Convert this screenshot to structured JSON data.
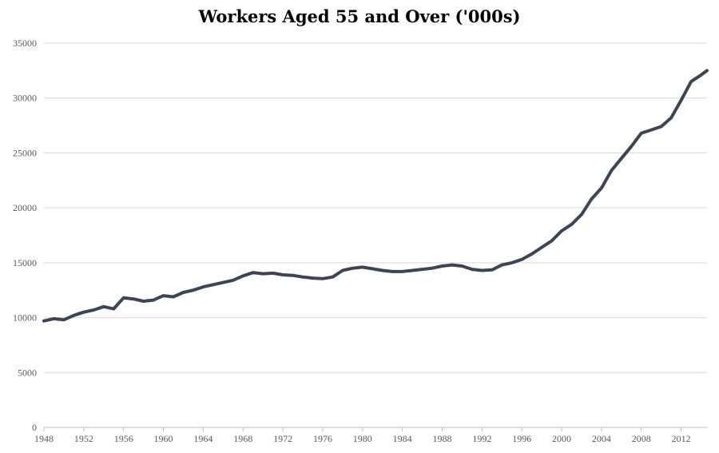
{
  "chart_data": {
    "type": "line",
    "title": "Workers Aged 55 and Over ('000s)",
    "xlabel": "",
    "ylabel": "",
    "xlim": [
      1948,
      2014.6
    ],
    "ylim": [
      0,
      35000
    ],
    "x_ticks": [
      "1948",
      "1952",
      "1956",
      "1960",
      "1964",
      "1968",
      "1972",
      "1976",
      "1980",
      "1984",
      "1988",
      "1992",
      "1996",
      "2000",
      "2004",
      "2008",
      "2012"
    ],
    "y_ticks": [
      "0",
      "5000",
      "10000",
      "15000",
      "20000",
      "25000",
      "30000",
      "35000"
    ],
    "grid": "horizontal",
    "legend": "none",
    "line_color": "#3d4555",
    "series": [
      {
        "x": [
          1948,
          1949,
          1950,
          1951,
          1952,
          1953,
          1954,
          1955,
          1956,
          1957,
          1958,
          1959,
          1960,
          1961,
          1962,
          1963,
          1964,
          1965,
          1966,
          1967,
          1968,
          1969,
          1970,
          1971,
          1972,
          1973,
          1974,
          1975,
          1976,
          1977,
          1978,
          1979,
          1980,
          1981,
          1982,
          1983,
          1984,
          1985,
          1986,
          1987,
          1988,
          1989,
          1990,
          1991,
          1992,
          1993,
          1994,
          1995,
          1996,
          1997,
          1998,
          1999,
          2000,
          2001,
          2002,
          2003,
          2004,
          2005,
          2006,
          2007,
          2008,
          2009,
          2010,
          2011,
          2012,
          2013,
          2014,
          2014.6
        ],
        "y": [
          9700,
          9900,
          9800,
          10200,
          10500,
          10700,
          11000,
          10800,
          11800,
          11700,
          11500,
          11600,
          12000,
          11900,
          12300,
          12500,
          12800,
          13000,
          13200,
          13400,
          13800,
          14100,
          14000,
          14050,
          13900,
          13850,
          13700,
          13600,
          13550,
          13700,
          14300,
          14500,
          14600,
          14450,
          14300,
          14200,
          14200,
          14300,
          14400,
          14500,
          14700,
          14800,
          14700,
          14400,
          14300,
          14350,
          14800,
          15000,
          15300,
          15800,
          16400,
          17000,
          17900,
          18500,
          19400,
          20800,
          21800,
          23400,
          24500,
          25600,
          26800,
          27100,
          27400,
          28200,
          29800,
          31500,
          32100,
          32500
        ]
      }
    ]
  }
}
